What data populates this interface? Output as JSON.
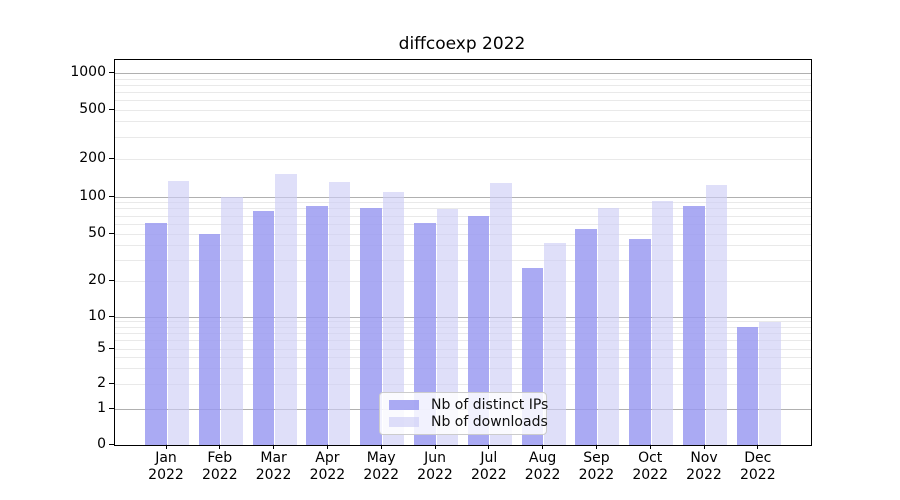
{
  "title": "diffcoexp 2022",
  "colors": {
    "ips_bar": "#9a9af1",
    "downloads_bar": "#cdcdf5",
    "ips_bar_perceived": "#aaaaf3",
    "downloads_bar_perceived": "#dcdcf8",
    "grid_major": "#b0b0b0",
    "grid_minor": "#e9e9e9",
    "axis": "#000000",
    "legend_border": "#cccccc"
  },
  "chart_data": {
    "type": "bar",
    "title": "diffcoexp 2022",
    "categories": [
      "Jan 2022",
      "Feb 2022",
      "Mar 2022",
      "Apr 2022",
      "May 2022",
      "Jun 2022",
      "Jul 2022",
      "Aug 2022",
      "Sep 2022",
      "Oct 2022",
      "Nov 2022",
      "Dec 2022"
    ],
    "series": [
      {
        "name": "Nb of distinct IPs",
        "values": [
          61,
          50,
          77,
          84,
          82,
          61,
          70,
          26,
          55,
          45,
          84,
          8
        ]
      },
      {
        "name": "Nb of downloads",
        "values": [
          134,
          100,
          152,
          131,
          110,
          80,
          129,
          42,
          81,
          92,
          124,
          9
        ]
      }
    ],
    "xlabel": "",
    "ylabel": "",
    "yscale": "log-like (0,1,2,5,10,20,50,100,200,500,1000)",
    "yticks": [
      0,
      1,
      2,
      5,
      10,
      20,
      50,
      100,
      200,
      500,
      1000
    ],
    "ylim": [
      0,
      1270
    ],
    "grid": true,
    "legend_position": "lower center"
  }
}
